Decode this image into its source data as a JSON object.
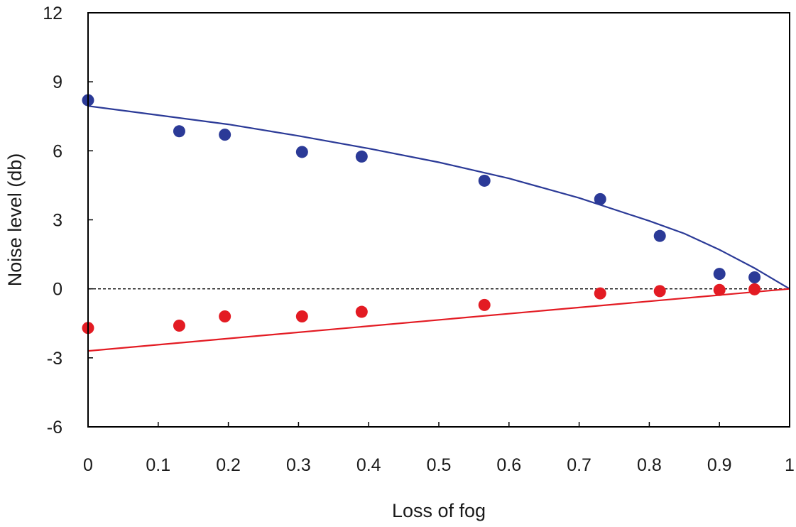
{
  "chart_data": {
    "type": "scatter",
    "title": "",
    "xlabel": "Loss of fog",
    "ylabel": "Noise level (db)",
    "xlim": [
      0,
      1
    ],
    "ylim": [
      -6,
      12
    ],
    "xticks": [
      0,
      0.1,
      0.2,
      0.3,
      0.4,
      0.5,
      0.6,
      0.7,
      0.8,
      0.9,
      1
    ],
    "xtick_labels": [
      "0",
      "0.1",
      "0.2",
      "0.3",
      "0.4",
      "0.5",
      "0.6",
      "0.7",
      "0.8",
      "0.9",
      "1"
    ],
    "yticks": [
      -6,
      -3,
      0,
      3,
      6,
      9,
      12
    ],
    "ytick_labels": [
      "-6",
      "-3",
      "0",
      "3",
      "6",
      "9",
      "12"
    ],
    "grid": false,
    "legend": "none",
    "reference_line": {
      "y": 0,
      "style": "dashed",
      "color": "#000000"
    },
    "series": [
      {
        "color": "#2b3a97",
        "points": [
          {
            "x": 0.0,
            "y": 8.2
          },
          {
            "x": 0.13,
            "y": 6.85
          },
          {
            "x": 0.195,
            "y": 6.7
          },
          {
            "x": 0.305,
            "y": 5.95
          },
          {
            "x": 0.39,
            "y": 5.75
          },
          {
            "x": 0.565,
            "y": 4.7
          },
          {
            "x": 0.73,
            "y": 3.9
          },
          {
            "x": 0.815,
            "y": 2.3
          },
          {
            "x": 0.9,
            "y": 0.65
          },
          {
            "x": 0.95,
            "y": 0.5
          }
        ],
        "fit_curve": [
          {
            "x": 0.0,
            "y": 7.95
          },
          {
            "x": 0.1,
            "y": 7.55
          },
          {
            "x": 0.2,
            "y": 7.15
          },
          {
            "x": 0.3,
            "y": 6.65
          },
          {
            "x": 0.4,
            "y": 6.1
          },
          {
            "x": 0.5,
            "y": 5.5
          },
          {
            "x": 0.6,
            "y": 4.8
          },
          {
            "x": 0.7,
            "y": 3.95
          },
          {
            "x": 0.8,
            "y": 2.95
          },
          {
            "x": 0.85,
            "y": 2.4
          },
          {
            "x": 0.9,
            "y": 1.7
          },
          {
            "x": 0.95,
            "y": 0.9
          },
          {
            "x": 1.0,
            "y": 0.0
          }
        ]
      },
      {
        "color": "#e31b23",
        "points": [
          {
            "x": 0.0,
            "y": -1.7
          },
          {
            "x": 0.13,
            "y": -1.6
          },
          {
            "x": 0.195,
            "y": -1.2
          },
          {
            "x": 0.305,
            "y": -1.2
          },
          {
            "x": 0.39,
            "y": -1.0
          },
          {
            "x": 0.565,
            "y": -0.7
          },
          {
            "x": 0.73,
            "y": -0.2
          },
          {
            "x": 0.815,
            "y": -0.1
          },
          {
            "x": 0.9,
            "y": -0.05
          },
          {
            "x": 0.95,
            "y": -0.02
          }
        ],
        "fit_curve": [
          {
            "x": 0.0,
            "y": -2.7
          },
          {
            "x": 1.0,
            "y": 0.0
          }
        ]
      }
    ]
  }
}
